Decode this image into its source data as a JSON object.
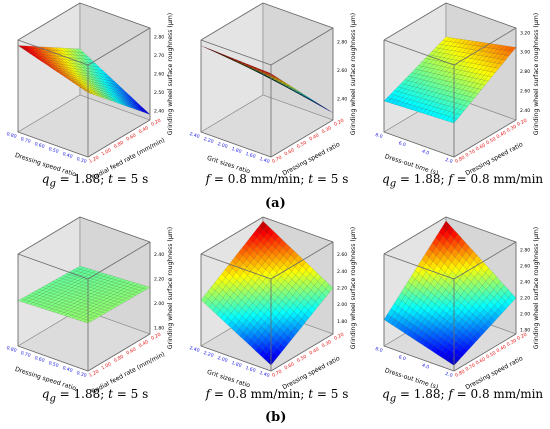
{
  "figure": {
    "label_a": "(a)",
    "label_b": "(b)"
  },
  "chart_data": [
    {
      "type": "surface3d",
      "row": "a",
      "col": 0,
      "zlabel": "Grinding wheel surface roughness (μm)",
      "xlabel": "Dressing speed ratio",
      "ylabel": "Radial feed rate (mm/min)",
      "x_ticks": [
        "0.80",
        "0.70",
        "0.60",
        "0.50",
        "0.40",
        "0.30"
      ],
      "y_ticks": [
        "1.20",
        "1.00",
        "0.80",
        "0.60",
        "0.40",
        "0.20"
      ],
      "z_ticks": [
        "2.40",
        "2.50",
        "2.60",
        "2.70",
        "2.80"
      ],
      "zlim": [
        2.35,
        2.85
      ],
      "corners": {
        "x0y0": 2.82,
        "x1y0": 2.7,
        "x0y1": 2.6,
        "x1y1": 2.38
      },
      "caption": {
        "param1_sym": "q",
        "param1_sub": "g",
        "param1_val": "= 1.88; ",
        "param2_sym": "t",
        "param2_val": "= 5 s"
      }
    },
    {
      "type": "surface3d",
      "row": "a",
      "col": 1,
      "zlabel": "Grinding wheel surface roughness (μm)",
      "xlabel": "Grit sizes ratio",
      "ylabel": "Dressing speed ratio",
      "x_ticks": [
        "2.40",
        "2.20",
        "2.00",
        "1.80",
        "1.60",
        "1.40"
      ],
      "y_ticks": [
        "0.70",
        "0.60",
        "0.50",
        "0.40",
        "0.30",
        "0.20"
      ],
      "z_ticks": [
        "2.40",
        "2.60",
        "2.80"
      ],
      "zlim": [
        2.25,
        2.9
      ],
      "corners": {
        "x0y0": 2.86,
        "x1y0": 2.84,
        "x0y1": 2.4,
        "x1y1": 2.3
      },
      "caption": {
        "param1_sym": "f",
        "param1_val": "= 0.8 mm/min; ",
        "param2_sym": "t",
        "param2_val": "= 5 s"
      }
    },
    {
      "type": "surface3d",
      "row": "a",
      "col": 2,
      "zlabel": "Grinding wheel surface roughness (μm)",
      "xlabel": "Dress-out time (s)",
      "ylabel": "Dressing speed ratio",
      "x_ticks": [
        "8.0",
        "6.0",
        "4.0",
        "2.0"
      ],
      "y_ticks": [
        "0.80",
        "0.70",
        "0.60",
        "0.50",
        "0.40",
        "0.30",
        "0.20"
      ],
      "z_ticks": [
        "2.40",
        "2.60",
        "2.80",
        "3.00",
        "3.20"
      ],
      "zlim": [
        2.3,
        3.25
      ],
      "corners": {
        "x0y0": 2.62,
        "x1y0": 2.65,
        "x0y1": 2.9,
        "x1y1": 3.05
      },
      "caption": {
        "param1_sym": "q",
        "param1_sub": "g",
        "param1_val": "= 1.88; ",
        "param2_sym": "f",
        "param2_val": "= 0.8 mm/min"
      }
    },
    {
      "type": "surface3d",
      "row": "b",
      "col": 0,
      "zlabel": "Grinding wheel surface roughness (μm)",
      "xlabel": "Dressing speed ratio",
      "ylabel": "Radial feed rate (mm/min)",
      "x_ticks": [
        "0.80",
        "0.70",
        "0.60",
        "0.50",
        "0.40",
        "0.30"
      ],
      "y_ticks": [
        "1.20",
        "1.00",
        "0.80",
        "0.60",
        "0.40",
        "0.20"
      ],
      "z_ticks": [
        "1.80",
        "2.00",
        "2.20",
        "2.40"
      ],
      "zlim": [
        1.75,
        2.5
      ],
      "corners": {
        "x0y0": 2.12,
        "x1y0": 2.14,
        "x0y1": 2.1,
        "x1y1": 2.13
      },
      "caption": {
        "param1_sym": "q",
        "param1_sub": "g",
        "param1_val": "= 1.88; ",
        "param2_sym": "t",
        "param2_val": "= 5 s"
      }
    },
    {
      "type": "surface3d",
      "row": "b",
      "col": 1,
      "zlabel": "Grinding wheel surface roughness (μm)",
      "xlabel": "Grit sizes ratio",
      "ylabel": "Dressing speed ratio",
      "x_ticks": [
        "2.40",
        "2.20",
        "2.00",
        "1.80",
        "1.60",
        "1.40"
      ],
      "y_ticks": [
        "0.70",
        "0.60",
        "0.50",
        "0.40",
        "0.30",
        "0.20"
      ],
      "z_ticks": [
        "1.80",
        "2.00",
        "2.20",
        "2.40",
        "2.60"
      ],
      "zlim": [
        1.65,
        2.75
      ],
      "corners": {
        "x0y0": 2.2,
        "x1y0": 1.72,
        "x0y1": 2.7,
        "x1y1": 2.2
      },
      "caption": {
        "param1_sym": "f",
        "param1_val": "= 0.8 mm/min; ",
        "param2_sym": "t",
        "param2_val": "= 5 s"
      }
    },
    {
      "type": "surface3d",
      "row": "b",
      "col": 2,
      "zlabel": "Grinding wheel surface roughness (μm)",
      "xlabel": "Dress-out time (s)",
      "ylabel": "Dressing speed ratio",
      "x_ticks": [
        "8.0",
        "6.0",
        "4.0",
        "2.0"
      ],
      "y_ticks": [
        "0.80",
        "0.70",
        "0.60",
        "0.50",
        "0.40",
        "0.30",
        "0.20"
      ],
      "z_ticks": [
        "1.80",
        "2.00",
        "2.20",
        "2.40",
        "2.60",
        "2.80"
      ],
      "zlim": [
        1.75,
        2.9
      ],
      "corners": {
        "x0y0": 2.08,
        "x1y0": 1.82,
        "x0y1": 2.85,
        "x1y1": 2.2
      },
      "caption": {
        "param1_sym": "q",
        "param1_sub": "g",
        "param1_val": "= 1.88; ",
        "param2_sym": "f",
        "param2_val": "= 0.8 mm/min"
      }
    }
  ]
}
